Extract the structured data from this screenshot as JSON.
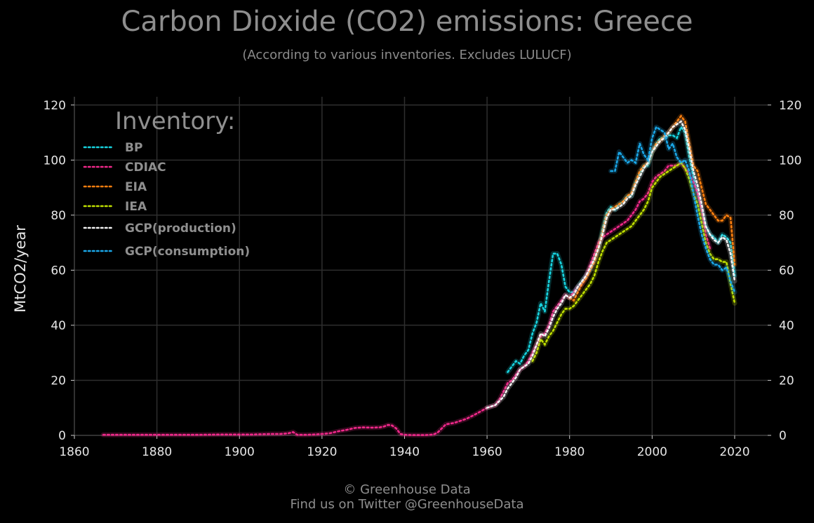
{
  "chart_data": {
    "type": "line",
    "title": "Carbon Dioxide (CO2) emissions: Greece",
    "subtitle": "(According to various inventories. Excludes LULUCF)",
    "ylabel": "MtCO2/year",
    "xlim": [
      1860,
      2028
    ],
    "ylim": [
      0,
      123
    ],
    "x_ticks": [
      1860,
      1880,
      1900,
      1920,
      1940,
      1960,
      1980,
      2000,
      2020
    ],
    "y_ticks": [
      0,
      20,
      40,
      60,
      80,
      100,
      120
    ],
    "grid": true,
    "legend_title": "Inventory:",
    "legend_position": "top-left",
    "series": [
      {
        "name": "BP",
        "color": "#17d4e0",
        "x": [
          1965,
          1966,
          1967,
          1968,
          1969,
          1970,
          1971,
          1972,
          1973,
          1974,
          1975,
          1976,
          1977,
          1978,
          1979,
          1980,
          1981,
          1982,
          1983,
          1984,
          1985,
          1986,
          1987,
          1988,
          1989,
          1990,
          1991,
          1992,
          1993,
          1994,
          1995,
          1996,
          1997,
          1998,
          1999,
          2000,
          2001,
          2002,
          2003,
          2004,
          2005,
          2006,
          2007,
          2008,
          2009,
          2010,
          2011,
          2012,
          2013,
          2014,
          2015,
          2016,
          2017,
          2018,
          2019,
          2020
        ],
        "y": [
          23,
          25,
          27,
          26,
          29,
          31,
          37,
          41,
          48,
          45,
          56,
          66,
          66,
          62,
          54,
          52,
          52,
          54,
          56,
          58,
          60,
          64,
          68,
          75,
          81,
          83,
          82,
          84,
          85,
          87,
          87,
          92,
          95,
          98,
          98,
          103,
          106,
          108,
          108,
          109,
          109,
          108,
          112,
          110,
          101,
          94,
          88,
          82,
          76,
          73,
          72,
          70,
          73,
          72,
          70,
          58
        ]
      },
      {
        "name": "CDIAC",
        "color": "#f0288a",
        "x": [
          1867,
          1870,
          1875,
          1880,
          1885,
          1890,
          1895,
          1900,
          1903,
          1905,
          1908,
          1910,
          1912,
          1913,
          1914,
          1916,
          1918,
          1920,
          1922,
          1924,
          1926,
          1928,
          1930,
          1932,
          1934,
          1935,
          1936,
          1937,
          1938,
          1939,
          1940,
          1942,
          1945,
          1947,
          1948,
          1950,
          1952,
          1955,
          1957,
          1960,
          1962,
          1963,
          1964,
          1965,
          1966,
          1967,
          1968,
          1969,
          1970,
          1971,
          1972,
          1973,
          1974,
          1975,
          1976,
          1977,
          1978,
          1979,
          1980,
          1981,
          1982,
          1983,
          1984,
          1985,
          1986,
          1987,
          1988,
          1989,
          1990,
          1991,
          1992,
          1993,
          1994,
          1995,
          1996,
          1997,
          1998,
          1999,
          2000,
          2001,
          2002,
          2003,
          2004,
          2005,
          2006,
          2007,
          2008,
          2009,
          2010,
          2011,
          2012,
          2013,
          2014
        ],
        "y": [
          0.2,
          0.2,
          0.2,
          0.2,
          0.2,
          0.2,
          0.3,
          0.3,
          0.3,
          0.4,
          0.5,
          0.5,
          0.8,
          1.2,
          0.2,
          0.2,
          0.3,
          0.5,
          0.8,
          1.5,
          2.0,
          2.7,
          2.9,
          2.8,
          2.9,
          3.2,
          3.8,
          3.6,
          2.5,
          0.5,
          0.2,
          0.1,
          0.1,
          0.3,
          1.0,
          4.0,
          4.5,
          6.0,
          7.5,
          10,
          11,
          13,
          16,
          19,
          20,
          22,
          24,
          25,
          27,
          30,
          33,
          36,
          37,
          40,
          45,
          47,
          49,
          51,
          50,
          52,
          54,
          55,
          58,
          62,
          66,
          70,
          72,
          73,
          74,
          75,
          76,
          77,
          78,
          80,
          82,
          85,
          86,
          88,
          92,
          94,
          95,
          96,
          98,
          98,
          98,
          99,
          97,
          95,
          92,
          88,
          82,
          73,
          68
        ]
      },
      {
        "name": "EIA",
        "color": "#ff7f0e",
        "x": [
          1980,
          1981,
          1982,
          1983,
          1984,
          1985,
          1986,
          1987,
          1988,
          1989,
          1990,
          1991,
          1992,
          1993,
          1994,
          1995,
          1996,
          1997,
          1998,
          1999,
          2000,
          2001,
          2002,
          2003,
          2004,
          2005,
          2006,
          2007,
          2008,
          2009,
          2010,
          2011,
          2012,
          2013,
          2014,
          2015,
          2016,
          2017,
          2018,
          2019,
          2020
        ],
        "y": [
          50,
          49,
          52,
          55,
          57,
          60,
          63,
          68,
          74,
          80,
          82,
          83,
          84,
          85,
          87,
          88,
          92,
          96,
          98,
          99,
          103,
          106,
          107,
          109,
          110,
          112,
          114,
          116,
          114,
          106,
          98,
          96,
          90,
          84,
          82,
          80,
          78,
          78,
          80,
          79,
          62
        ]
      },
      {
        "name": "IEA",
        "color": "#bfdf00",
        "x": [
          1971,
          1972,
          1973,
          1974,
          1975,
          1976,
          1977,
          1978,
          1979,
          1980,
          1981,
          1982,
          1983,
          1984,
          1985,
          1986,
          1987,
          1988,
          1989,
          1990,
          1991,
          1992,
          1993,
          1994,
          1995,
          1996,
          1997,
          1998,
          1999,
          2000,
          2001,
          2002,
          2003,
          2004,
          2005,
          2006,
          2007,
          2008,
          2009,
          2010,
          2011,
          2012,
          2013,
          2014,
          2015,
          2016,
          2017,
          2018,
          2019,
          2020
        ],
        "y": [
          27,
          30,
          35,
          33,
          36,
          38,
          41,
          44,
          46,
          46,
          47,
          49,
          51,
          53,
          55,
          58,
          63,
          67,
          70,
          71,
          72,
          73,
          74,
          75,
          76,
          78,
          80,
          82,
          85,
          90,
          92,
          94,
          95,
          96,
          97,
          98,
          99,
          97,
          93,
          88,
          84,
          77,
          70,
          66,
          64,
          64,
          63,
          63,
          55,
          48
        ]
      },
      {
        "name": "GCP(production)",
        "color": "#f2f2f2",
        "x": [
          1960,
          1962,
          1964,
          1965,
          1966,
          1967,
          1968,
          1969,
          1970,
          1971,
          1972,
          1973,
          1974,
          1975,
          1976,
          1977,
          1978,
          1979,
          1980,
          1981,
          1982,
          1983,
          1984,
          1985,
          1986,
          1987,
          1988,
          1989,
          1990,
          1991,
          1992,
          1993,
          1994,
          1995,
          1996,
          1997,
          1998,
          1999,
          2000,
          2001,
          2002,
          2003,
          2004,
          2005,
          2006,
          2007,
          2008,
          2009,
          2010,
          2011,
          2012,
          2013,
          2014,
          2015,
          2016,
          2017,
          2018,
          2019,
          2020
        ],
        "y": [
          10,
          11,
          14,
          17,
          19,
          21,
          24,
          25,
          26,
          29,
          33,
          37,
          36,
          39,
          43,
          46,
          48,
          51,
          50,
          51,
          54,
          56,
          58,
          61,
          64,
          68,
          73,
          79,
          82,
          82,
          83,
          84,
          86,
          87,
          91,
          94,
          97,
          99,
          103,
          105,
          107,
          108,
          110,
          112,
          113,
          114,
          111,
          104,
          96,
          91,
          84,
          76,
          73,
          71,
          70,
          72,
          71,
          66,
          56
        ]
      },
      {
        "name": "GCP(consumption)",
        "color": "#1aa7e8",
        "x": [
          1990,
          1991,
          1992,
          1993,
          1994,
          1995,
          1996,
          1997,
          1998,
          1999,
          2000,
          2001,
          2002,
          2003,
          2004,
          2005,
          2006,
          2007,
          2008,
          2009,
          2010,
          2011,
          2012,
          2013,
          2014,
          2015,
          2016,
          2017,
          2018,
          2019,
          2020
        ],
        "y": [
          96,
          96,
          103,
          101,
          99,
          100,
          99,
          106,
          102,
          100,
          108,
          112,
          111,
          110,
          104,
          106,
          101,
          99,
          100,
          96,
          88,
          80,
          73,
          68,
          64,
          62,
          62,
          60,
          61,
          56,
          52
        ]
      }
    ]
  },
  "footer": {
    "line1": "© Greenhouse Data",
    "line2": "Find us on Twitter @GreenhouseData"
  }
}
